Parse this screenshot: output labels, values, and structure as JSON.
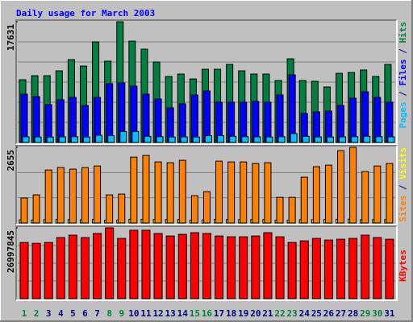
{
  "chart_data": [
    {
      "type": "bar",
      "title": "Daily usage for March 2003",
      "series": [
        {
          "name": "Hits",
          "color": "#008040",
          "values": [
            9165,
            9750,
            9750,
            10460,
            12100,
            11160,
            14690,
            11870,
            17631,
            14800,
            13630,
            11750,
            9635,
            9990,
            9280,
            10690,
            10690,
            11400,
            10460,
            9990,
            9990,
            9050,
            12220,
            9050,
            8930,
            8110,
            10100,
            10220,
            10580,
            9635,
            11400
          ]
        },
        {
          "name": "Files",
          "color": "#0000ff",
          "values": [
            7050,
            6700,
            5520,
            6230,
            6580,
            5400,
            6580,
            8580,
            8700,
            8230,
            7050,
            6350,
            5050,
            5640,
            6930,
            7520,
            5880,
            5880,
            5880,
            5990,
            5880,
            6930,
            9870,
            4230,
            4470,
            4580,
            5400,
            6460,
            7400,
            6580,
            5880
          ]
        },
        {
          "name": "Pages",
          "color": "#00c0ff",
          "values": [
            820,
            800,
            780,
            820,
            850,
            800,
            1050,
            1000,
            1600,
            1600,
            900,
            850,
            800,
            820,
            800,
            1000,
            1000,
            900,
            850,
            820,
            800,
            850,
            1300,
            900,
            820,
            800,
            820,
            850,
            900,
            850,
            820
          ]
        }
      ],
      "legend_separator": "/",
      "ylim": [
        0,
        17631
      ],
      "yticks": [
        17631
      ]
    },
    {
      "type": "bar",
      "series": [
        {
          "name": "Visits",
          "color": "#ffff00",
          "values": [
            110,
            105,
            115,
            120,
            118,
            112,
            125,
            100,
            105,
            130,
            128,
            122,
            118,
            120,
            102,
            108,
            124,
            120,
            118,
            119,
            121,
            98,
            100,
            115,
            118,
            120,
            130,
            135,
            115,
            118,
            120
          ]
        },
        {
          "name": "Sites",
          "color": "#ff8000",
          "values": [
            875,
            987,
            1860,
            1946,
            1890,
            1946,
            2000,
            987,
            1015,
            2312,
            2370,
            2143,
            2115,
            2200,
            960,
            1100,
            2170,
            2143,
            2143,
            2087,
            2115,
            900,
            900,
            1607,
            1974,
            2030,
            2538,
            2655,
            1805,
            2000,
            2087
          ]
        }
      ],
      "legend_separator": "/",
      "ylim": [
        0,
        2655
      ],
      "yticks": [
        2655
      ]
    },
    {
      "type": "bar",
      "series": [
        {
          "name": "KBytes",
          "color": "#ff0000",
          "values": [
            21410000,
            21100000,
            21410000,
            23270000,
            24200000,
            23270000,
            24830000,
            26997845,
            22960000,
            26070000,
            26070000,
            24830000,
            23890000,
            24510000,
            25140000,
            24830000,
            23890000,
            23580000,
            23580000,
            23890000,
            25140000,
            23580000,
            21410000,
            22030000,
            22960000,
            22340000,
            22650000,
            22960000,
            24200000,
            23270000,
            22650000
          ]
        }
      ],
      "categories": [
        "1",
        "2",
        "3",
        "4",
        "5",
        "6",
        "7",
        "8",
        "9",
        "10",
        "11",
        "12",
        "13",
        "14",
        "15",
        "16",
        "17",
        "18",
        "19",
        "20",
        "21",
        "22",
        "23",
        "24",
        "25",
        "26",
        "27",
        "28",
        "29",
        "30",
        "31"
      ],
      "category_colors": [
        "#008040",
        "#008040",
        "#000080",
        "#000080",
        "#000080",
        "#000080",
        "#000080",
        "#008040",
        "#008040",
        "#000080",
        "#000080",
        "#000080",
        "#000080",
        "#000080",
        "#008040",
        "#008040",
        "#000080",
        "#000080",
        "#000080",
        "#000080",
        "#000080",
        "#008040",
        "#008040",
        "#000080",
        "#000080",
        "#000080",
        "#000080",
        "#000080",
        "#008040",
        "#008040",
        "#000080"
      ],
      "ylim": [
        0,
        26997845
      ],
      "yticks": [
        26997845
      ]
    }
  ]
}
